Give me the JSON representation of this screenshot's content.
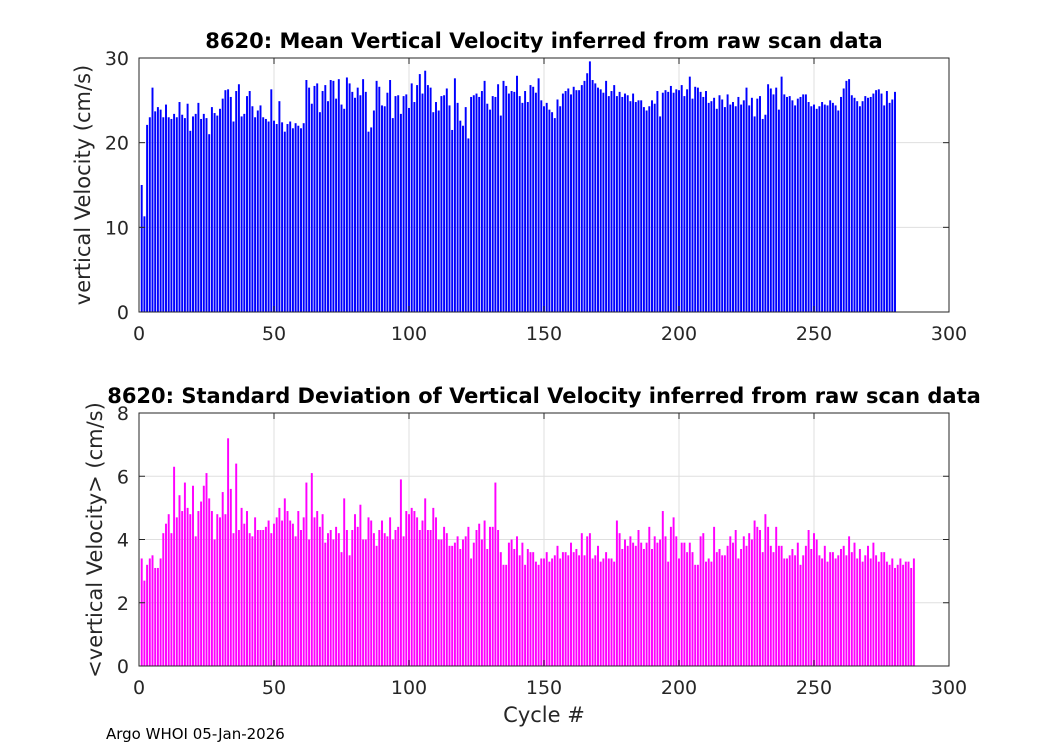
{
  "footer": "Argo WHOI 05-Jan-2026",
  "chart_data": [
    {
      "type": "bar",
      "title": "8620: Mean Vertical Velocity inferred from raw scan data",
      "xlabel": "",
      "ylabel": "vertical Velocity (cm/s)",
      "xlim": [
        0,
        300
      ],
      "ylim": [
        0,
        30
      ],
      "xticks": [
        0,
        50,
        100,
        150,
        200,
        250,
        300
      ],
      "yticks": [
        0,
        10,
        20,
        30
      ],
      "grid": true,
      "color": "#0000ff",
      "x_start": 1,
      "values": [
        15.0,
        11.3,
        22.1,
        23.0,
        26.5,
        23.7,
        24.2,
        23.9,
        23.0,
        24.5,
        23.0,
        22.8,
        23.4,
        23.0,
        24.8,
        23.3,
        22.9,
        24.6,
        21.4,
        23.1,
        23.4,
        24.7,
        22.8,
        23.4,
        22.9,
        21.0,
        24.2,
        23.5,
        23.2,
        24.0,
        25.2,
        26.2,
        26.3,
        25.4,
        22.5,
        26.1,
        26.9,
        23.1,
        23.4,
        25.5,
        26.1,
        24.3,
        23.0,
        23.8,
        24.4,
        23.0,
        22.8,
        22.5,
        26.3,
        22.6,
        22.2,
        24.9,
        22.4,
        21.3,
        22.2,
        22.5,
        21.7,
        22.3,
        22.0,
        21.7,
        22.3,
        27.4,
        26.5,
        24.6,
        26.7,
        27.0,
        23.6,
        26.1,
        26.8,
        24.9,
        27.4,
        27.3,
        25.2,
        27.5,
        24.5,
        24.0,
        27.7,
        27.0,
        26.0,
        25.3,
        26.5,
        25.6,
        27.5,
        26.0,
        21.3,
        21.8,
        23.8,
        27.3,
        26.6,
        24.4,
        24.3,
        25.9,
        27.4,
        22.9,
        25.5,
        25.6,
        23.4,
        25.5,
        25.7,
        24.1,
        27.0,
        24.8,
        26.8,
        28.1,
        25.8,
        28.5,
        26.8,
        26.5,
        23.6,
        24.8,
        23.8,
        25.5,
        25.6,
        26.4,
        24.4,
        21.5,
        27.6,
        24.7,
        22.6,
        22.0,
        24.2,
        20.5,
        25.4,
        25.6,
        25.8,
        25.4,
        26.1,
        27.3,
        24.6,
        23.9,
        25.5,
        25.4,
        26.9,
        23.2,
        27.3,
        26.7,
        25.8,
        26.1,
        26.0,
        27.9,
        25.5,
        24.7,
        26.1,
        24.8,
        26.8,
        26.6,
        25.9,
        27.6,
        25.0,
        24.3,
        24.7,
        23.9,
        23.6,
        22.9,
        25.1,
        24.3,
        25.8,
        26.1,
        26.4,
        25.7,
        26.6,
        26.2,
        26.2,
        26.8,
        27.3,
        28.2,
        29.6,
        27.4,
        27.0,
        26.5,
        26.3,
        25.9,
        27.3,
        25.5,
        26.1,
        26.8,
        25.5,
        26.0,
        25.4,
        25.8,
        25.6,
        24.9,
        25.8,
        24.8,
        25.0,
        25.0,
        24.2,
        23.8,
        24.3,
        25.0,
        24.6,
        26.1,
        23.1,
        25.9,
        26.2,
        26.0,
        26.7,
        25.9,
        26.3,
        26.2,
        26.8,
        25.5,
        26.3,
        27.8,
        25.2,
        26.6,
        26.5,
        26.0,
        25.4,
        26.1,
        24.7,
        24.9,
        25.3,
        24.0,
        25.6,
        25.1,
        24.2,
        25.7,
        24.5,
        24.8,
        24.3,
        25.4,
        24.5,
        25.0,
        26.5,
        24.4,
        25.3,
        23.1,
        25.2,
        25.5,
        22.8,
        23.3,
        26.9,
        26.4,
        25.7,
        26.5,
        23.9,
        27.8,
        25.7,
        25.4,
        25.5,
        25.0,
        24.4,
        25.2,
        25.4,
        25.7,
        25.7,
        24.8,
        24.3,
        24.5,
        24.0,
        24.3,
        24.8,
        24.5,
        24.4,
        25.0,
        24.7,
        24.4,
        23.8,
        25.4,
        26.4,
        27.3,
        27.5,
        25.6,
        25.3,
        24.9,
        24.3,
        24.9,
        25.5,
        25.3,
        25.4,
        25.8,
        26.2,
        26.3,
        25.8,
        24.4,
        26.1,
        24.7,
        25.1,
        26.0
      ]
    },
    {
      "type": "bar",
      "title": "8620: Standard Deviation of Vertical Velocity inferred from raw scan data",
      "xlabel": "Cycle #",
      "ylabel": "<vertical Velocity> (cm/s)",
      "xlim": [
        0,
        300
      ],
      "ylim": [
        0,
        8
      ],
      "xticks": [
        0,
        50,
        100,
        150,
        200,
        250,
        300
      ],
      "yticks": [
        0,
        2,
        4,
        6,
        8
      ],
      "grid": true,
      "color": "#ff00ff",
      "x_start": 1,
      "values": [
        3.4,
        2.7,
        3.2,
        3.4,
        3.5,
        3.1,
        3.1,
        3.4,
        4.2,
        4.5,
        4.8,
        4.2,
        6.3,
        4.7,
        5.4,
        4.9,
        5.8,
        5.0,
        4.8,
        5.7,
        4.1,
        4.9,
        5.2,
        5.7,
        6.1,
        5.3,
        4.9,
        4.0,
        4.8,
        4.7,
        5.5,
        4.8,
        7.2,
        5.6,
        4.2,
        6.4,
        4.3,
        5.0,
        4.5,
        4.9,
        4.2,
        4.1,
        4.7,
        4.3,
        4.3,
        4.3,
        4.4,
        4.6,
        4.2,
        4.5,
        4.7,
        5.0,
        4.6,
        5.3,
        4.9,
        4.6,
        4.5,
        4.1,
        4.9,
        4.3,
        4.7,
        5.8,
        4.0,
        6.1,
        4.7,
        4.9,
        4.4,
        4.8,
        3.9,
        4.2,
        4.3,
        4.0,
        4.4,
        4.2,
        3.6,
        5.3,
        4.3,
        3.5,
        4.3,
        4.8,
        4.4,
        5.1,
        4.0,
        4.0,
        4.7,
        4.6,
        4.2,
        3.8,
        4.3,
        4.6,
        4.2,
        4.1,
        4.7,
        4.0,
        4.3,
        4.4,
        5.9,
        4.1,
        4.9,
        4.8,
        5.0,
        4.9,
        4.7,
        4.3,
        4.6,
        5.3,
        4.3,
        4.3,
        5.0,
        4.7,
        4.0,
        4.0,
        4.4,
        4.2,
        3.8,
        3.8,
        3.9,
        4.1,
        3.7,
        4.0,
        4.1,
        4.4,
        3.4,
        3.9,
        4.3,
        4.5,
        4.0,
        4.6,
        3.7,
        4.4,
        4.4,
        5.8,
        4.3,
        3.6,
        3.2,
        3.2,
        3.9,
        4.0,
        3.7,
        4.1,
        3.5,
        3.9,
        3.2,
        3.7,
        3.6,
        3.6,
        3.3,
        3.2,
        3.4,
        3.4,
        3.6,
        3.3,
        3.4,
        3.5,
        3.8,
        3.4,
        3.6,
        3.6,
        3.5,
        3.9,
        3.6,
        3.7,
        3.5,
        4.2,
        3.5,
        4.1,
        4.2,
        3.4,
        3.5,
        3.8,
        3.3,
        3.4,
        3.6,
        3.4,
        3.4,
        3.3,
        4.6,
        4.2,
        3.7,
        4.0,
        3.8,
        4.1,
        3.9,
        3.8,
        4.3,
        3.9,
        3.7,
        3.9,
        4.4,
        3.7,
        4.1,
        3.9,
        4.0,
        4.9,
        4.1,
        3.3,
        4.4,
        4.7,
        4.1,
        3.4,
        3.9,
        3.9,
        3.6,
        3.9,
        3.6,
        3.2,
        3.2,
        4.1,
        4.2,
        3.3,
        3.4,
        3.3,
        4.4,
        3.6,
        3.7,
        3.5,
        3.5,
        3.8,
        4.1,
        3.9,
        4.3,
        3.4,
        3.7,
        4.1,
        3.8,
        4.2,
        4.0,
        4.6,
        4.4,
        4.3,
        3.6,
        4.8,
        4.4,
        3.8,
        3.6,
        4.4,
        3.8,
        3.8,
        3.4,
        3.4,
        3.5,
        3.7,
        3.5,
        3.9,
        3.2,
        3.5,
        3.8,
        4.3,
        3.7,
        4.2,
        4.0,
        3.5,
        3.4,
        3.8,
        3.3,
        3.6,
        3.6,
        3.4,
        3.5,
        3.7,
        3.8,
        3.5,
        4.1,
        3.6,
        3.9,
        3.4,
        3.7,
        3.3,
        3.5,
        3.8,
        3.4,
        3.9,
        3.5,
        3.3,
        3.6,
        3.6,
        3.3,
        3.2,
        3.4,
        3.1,
        3.2,
        3.4,
        3.2,
        3.3,
        3.3,
        3.1,
        3.4
      ]
    }
  ]
}
